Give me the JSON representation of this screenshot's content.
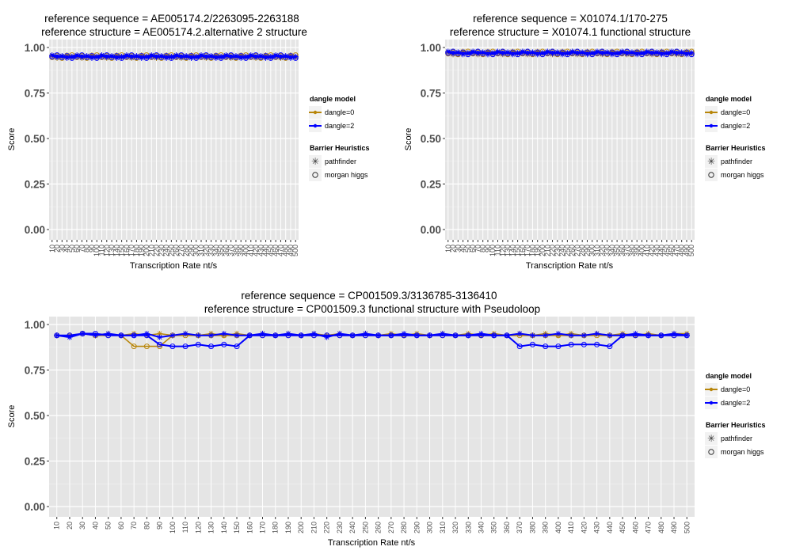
{
  "colors": {
    "panel_bg": "#e5e5e5",
    "grid": "#ffffff",
    "dangle0": "#b8860b",
    "dangle2": "#0000ff",
    "axis_text": "#4d4d4d",
    "legend_key_bg": "#f2f2f2"
  },
  "legend": {
    "dangle_title": "dangle model",
    "dangle_items": [
      "dangle=0",
      "dangle=2"
    ],
    "heuristic_title": "Barrier Heuristics",
    "heuristic_items": [
      "pathfinder",
      "morgan higgs"
    ],
    "heuristic_icons": [
      "asterisk-icon",
      "open-circle-icon"
    ]
  },
  "chart_data": [
    {
      "type": "line",
      "title": "reference sequence = AE005174.2/2263095-2263188",
      "subtitle": "reference structure = AE005174.2.alternative 2 structure",
      "xlabel": "Transcription Rate nt/s",
      "ylabel": "Score",
      "ylim": [
        0,
        1
      ],
      "y_ticks": [
        "0.00",
        "0.25",
        "0.50",
        "0.75",
        "1.00"
      ],
      "x_step": 10,
      "x_max": 500,
      "tick_rotation": "vertical",
      "flat_value": 0.95
    },
    {
      "type": "line",
      "title": "reference sequence = X01074.1/170-275",
      "subtitle": "reference structure = X01074.1 functional structure",
      "xlabel": "Transcription Rate nt/s",
      "ylabel": "Score",
      "ylim": [
        0,
        1
      ],
      "y_ticks": [
        "0.00",
        "0.25",
        "0.50",
        "0.75",
        "1.00"
      ],
      "x_step": 10,
      "x_max": 500,
      "tick_rotation": "vertical",
      "flat_value": 0.97
    },
    {
      "type": "line",
      "title": "reference sequence = CP001509.3/3136785-3136410",
      "subtitle": "reference structure = CP001509.3 functional structure with Pseudoloop",
      "xlabel": "Transcription Rate nt/s",
      "ylabel": "Score",
      "ylim": [
        0,
        1
      ],
      "y_ticks": [
        "0.00",
        "0.25",
        "0.50",
        "0.75",
        "1.00"
      ],
      "x": [
        10,
        20,
        30,
        40,
        50,
        60,
        70,
        80,
        90,
        100,
        110,
        120,
        130,
        140,
        150,
        160,
        170,
        180,
        190,
        200,
        210,
        220,
        230,
        240,
        250,
        260,
        270,
        280,
        290,
        300,
        310,
        320,
        330,
        340,
        350,
        360,
        370,
        380,
        390,
        400,
        410,
        420,
        430,
        440,
        450,
        460,
        470,
        480,
        490,
        500
      ],
      "series": [
        {
          "name": "dangle=0",
          "heuristic": "pathfinder",
          "values": [
            0.94,
            0.94,
            0.95,
            0.94,
            0.95,
            0.94,
            0.95,
            0.94,
            0.95,
            0.94,
            0.95,
            0.94,
            0.95,
            0.94,
            0.95,
            0.94,
            0.95,
            0.94,
            0.95,
            0.94,
            0.95,
            0.94,
            0.95,
            0.94,
            0.95,
            0.94,
            0.95,
            0.94,
            0.95,
            0.94,
            0.95,
            0.94,
            0.95,
            0.94,
            0.95,
            0.94,
            0.95,
            0.94,
            0.95,
            0.94,
            0.95,
            0.94,
            0.95,
            0.94,
            0.95,
            0.94,
            0.95,
            0.94,
            0.95,
            0.95
          ]
        },
        {
          "name": "dangle=0",
          "heuristic": "morgan higgs",
          "values": [
            0.94,
            0.94,
            0.95,
            0.94,
            0.94,
            0.94,
            0.88,
            0.88,
            0.88,
            0.94,
            0.94,
            0.94,
            0.94,
            0.94,
            0.94,
            0.94,
            0.94,
            0.94,
            0.94,
            0.94,
            0.94,
            0.94,
            0.94,
            0.94,
            0.94,
            0.94,
            0.94,
            0.94,
            0.94,
            0.94,
            0.94,
            0.94,
            0.94,
            0.94,
            0.94,
            0.94,
            0.94,
            0.94,
            0.94,
            0.94,
            0.94,
            0.94,
            0.94,
            0.94,
            0.94,
            0.94,
            0.94,
            0.94,
            0.94,
            0.94
          ]
        },
        {
          "name": "dangle=2",
          "heuristic": "pathfinder",
          "values": [
            0.94,
            0.93,
            0.95,
            0.94,
            0.95,
            0.94,
            0.94,
            0.95,
            0.93,
            0.94,
            0.95,
            0.94,
            0.94,
            0.95,
            0.94,
            0.94,
            0.95,
            0.94,
            0.95,
            0.94,
            0.95,
            0.93,
            0.95,
            0.94,
            0.95,
            0.94,
            0.94,
            0.95,
            0.94,
            0.94,
            0.95,
            0.94,
            0.94,
            0.95,
            0.94,
            0.94,
            0.95,
            0.94,
            0.94,
            0.95,
            0.94,
            0.94,
            0.95,
            0.94,
            0.94,
            0.95,
            0.94,
            0.94,
            0.95,
            0.94
          ]
        },
        {
          "name": "dangle=2",
          "heuristic": "morgan higgs",
          "values": [
            0.94,
            0.94,
            0.95,
            0.95,
            0.94,
            0.94,
            0.94,
            0.94,
            0.89,
            0.88,
            0.88,
            0.89,
            0.88,
            0.89,
            0.88,
            0.94,
            0.94,
            0.94,
            0.94,
            0.94,
            0.94,
            0.94,
            0.94,
            0.94,
            0.94,
            0.94,
            0.94,
            0.94,
            0.94,
            0.94,
            0.94,
            0.94,
            0.94,
            0.94,
            0.94,
            0.94,
            0.88,
            0.89,
            0.88,
            0.88,
            0.89,
            0.89,
            0.89,
            0.88,
            0.94,
            0.94,
            0.94,
            0.94,
            0.94,
            0.94
          ]
        }
      ]
    }
  ]
}
